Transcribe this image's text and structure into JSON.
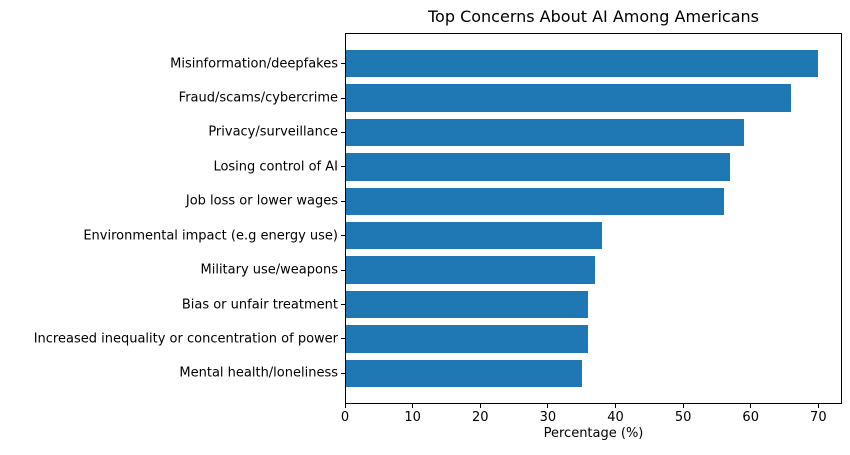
{
  "chart_data": {
    "type": "bar",
    "orientation": "horizontal",
    "title": "Top Concerns About AI Among Americans",
    "xlabel": "Percentage (%)",
    "ylabel": "",
    "categories": [
      "Misinformation/deepfakes",
      "Fraud/scams/cybercrime",
      "Privacy/surveillance",
      "Losing control of AI",
      "Job loss or lower wages",
      "Environmental impact (e.g energy use)",
      "Military use/weapons",
      "Bias or unfair treatment",
      "Increased inequality or concentration of power",
      "Mental health/loneliness"
    ],
    "values": [
      70,
      66,
      59,
      57,
      56,
      38,
      37,
      36,
      36,
      35
    ],
    "xticks": [
      0,
      10,
      20,
      30,
      40,
      50,
      60,
      70
    ],
    "xlim": [
      0,
      73.5
    ],
    "bar_color": "#1f77b4",
    "grid": false,
    "legend": "none"
  }
}
